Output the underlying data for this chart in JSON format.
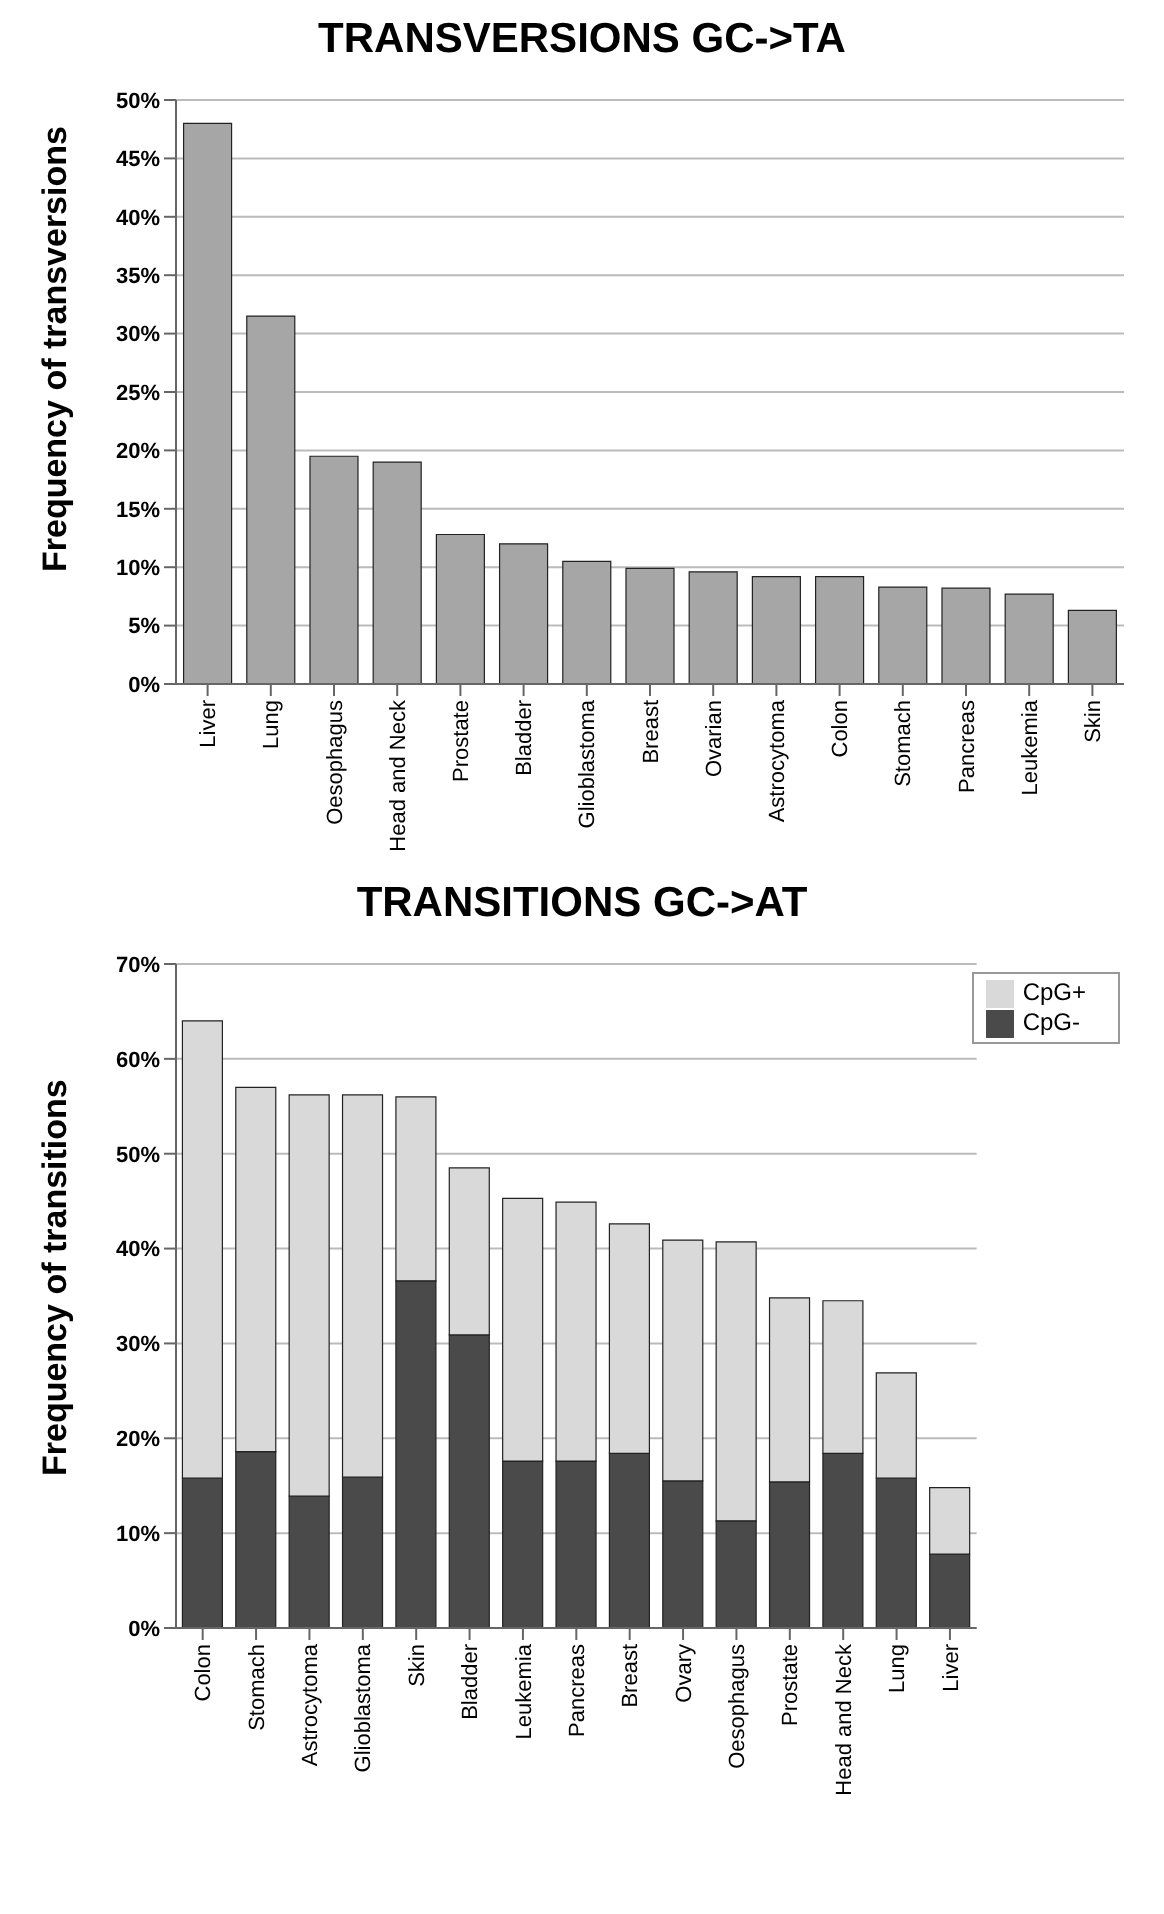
{
  "chart_data": [
    {
      "type": "bar",
      "title": "TRANSVERSIONS GC->TA",
      "ylabel": "Frequency of transversions",
      "categories": [
        "Liver",
        "Lung",
        "Oesophagus",
        "Head and Neck",
        "Prostate",
        "Bladder",
        "Glioblastoma",
        "Breast",
        "Ovarian",
        "Astrocytoma",
        "Colon",
        "Stomach",
        "Pancreas",
        "Leukemia",
        "Skin"
      ],
      "series": [
        {
          "color": "#a6a6a6",
          "values": [
            48,
            31.5,
            19.5,
            19,
            12.8,
            12,
            10.5,
            9.9,
            9.6,
            9.2,
            9.2,
            8.3,
            8.2,
            7.7,
            6.3
          ]
        }
      ],
      "ylim": [
        0,
        50
      ],
      "yticks": [
        {
          "value": 0,
          "label": "0%"
        },
        {
          "value": 5,
          "label": "5%"
        },
        {
          "value": 10,
          "label": "10%"
        },
        {
          "value": 15,
          "label": "15%"
        },
        {
          "value": 20,
          "label": "20%"
        },
        {
          "value": 25,
          "label": "25%"
        },
        {
          "value": 30,
          "label": "30%"
        },
        {
          "value": 35,
          "label": "35%"
        },
        {
          "value": 40,
          "label": "40%"
        },
        {
          "value": 45,
          "label": "45%"
        },
        {
          "value": 50,
          "label": "50%"
        }
      ],
      "grid": "y",
      "legend": false
    },
    {
      "type": "bar",
      "title": "TRANSITIONS GC->AT",
      "ylabel": "Frequency of transitions",
      "categories": [
        "Colon",
        "Stomach",
        "Astrocytoma",
        "Glioblastoma",
        "Skin",
        "Bladder",
        "Leukemia",
        "Pancreas",
        "Breast",
        "Ovary",
        "Oesophagus",
        "Prostate",
        "Head and Neck",
        "Lung",
        "Liver"
      ],
      "stacked": true,
      "series": [
        {
          "name": "CpG-",
          "color": "#4a4a4a",
          "values": [
            15.8,
            18.6,
            13.9,
            15.9,
            36.6,
            30.9,
            17.6,
            17.6,
            18.4,
            15.5,
            11.3,
            15.4,
            18.4,
            15.8,
            7.8
          ]
        },
        {
          "name": "CpG+",
          "color": "#d9d9d9",
          "values": [
            48.2,
            38.4,
            42.3,
            40.3,
            19.4,
            17.6,
            27.7,
            27.3,
            24.2,
            25.4,
            29.4,
            19.4,
            16.1,
            11.1,
            7
          ]
        }
      ],
      "ylim": [
        0,
        70
      ],
      "yticks": [
        {
          "value": 0,
          "label": "0%"
        },
        {
          "value": 10,
          "label": "10%"
        },
        {
          "value": 20,
          "label": "20%"
        },
        {
          "value": 30,
          "label": "30%"
        },
        {
          "value": 40,
          "label": "40%"
        },
        {
          "value": 50,
          "label": "50%"
        },
        {
          "value": 60,
          "label": "60%"
        },
        {
          "value": 70,
          "label": "70%"
        }
      ],
      "grid": "y",
      "legend": "top right"
    }
  ]
}
